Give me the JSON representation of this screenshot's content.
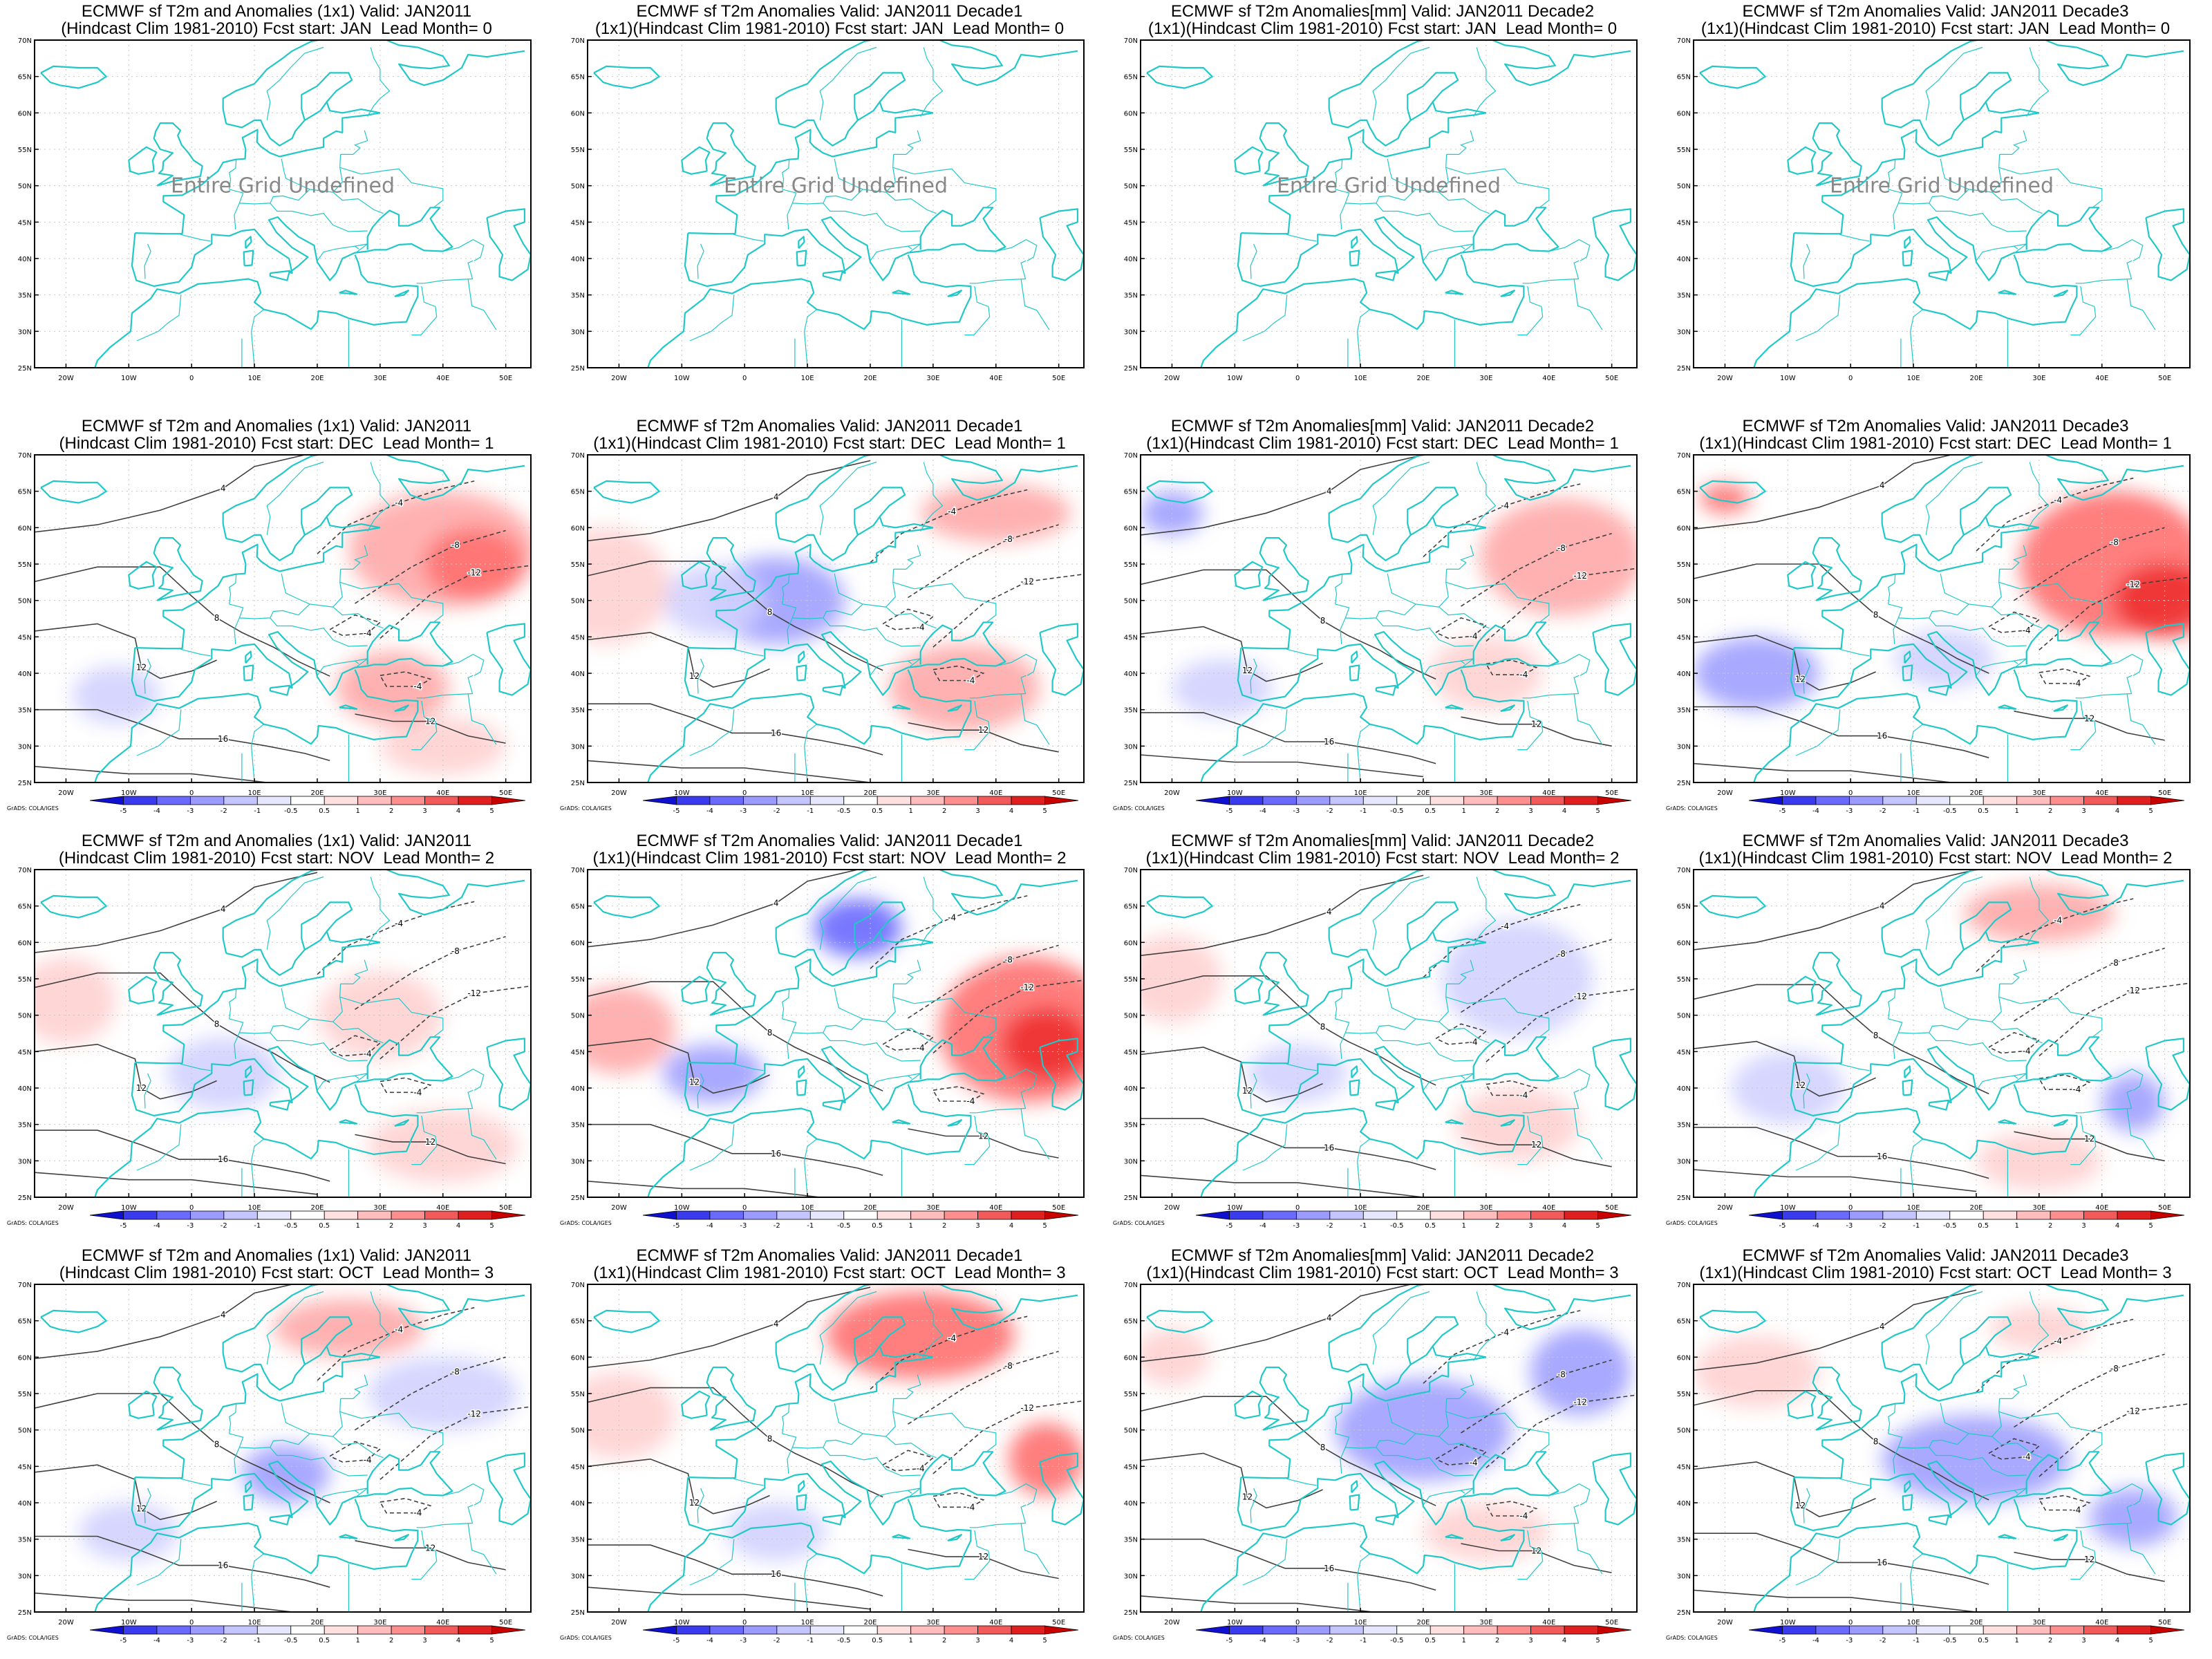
{
  "figure": {
    "common": {
      "lat_labels": [
        "70N",
        "65N",
        "60N",
        "55N",
        "50N",
        "45N",
        "40N",
        "35N",
        "30N",
        "25N"
      ],
      "lon_labels": [
        "20W",
        "10W",
        "0",
        "10E",
        "20E",
        "30E",
        "40E",
        "50E"
      ],
      "colorbar_levels": [
        "-5",
        "-4",
        "-3",
        "-2",
        "-1",
        "-0.5",
        "0.5",
        "1",
        "2",
        "3",
        "4",
        "5"
      ],
      "colorbar_credit": "GrADS: COLA/IGES",
      "undefined_message": "Entire Grid Undefined",
      "contour_labels": [
        "4",
        "-4",
        "8",
        "-8",
        "12",
        "-12",
        "16"
      ],
      "colors": {
        "coast": "#20c8c8",
        "cold_strong": "#2020e0",
        "cold_light": "#d8d8ff",
        "warm_light": "#ffd8d8",
        "warm_strong": "#e01818",
        "contour": "#404040"
      }
    },
    "panels": [
      {
        "title_line1": "ECMWF sf T2m and Anomalies (1x1) Valid: JAN2011",
        "title_line2": "(Hindcast Clim 1981-2010) Fcst start: JAN  Lead Month= 0",
        "state": "undefined"
      },
      {
        "title_line1": "ECMWF sf T2m Anomalies Valid: JAN2011 Decade1",
        "title_line2": "(1x1)(Hindcast Clim 1981-2010) Fcst start: JAN  Lead Month= 0",
        "state": "undefined"
      },
      {
        "title_line1": "ECMWF sf T2m Anomalies[mm] Valid: JAN2011 Decade2",
        "title_line2": "(1x1)(Hindcast Clim 1981-2010) Fcst start: JAN  Lead Month= 0",
        "state": "undefined"
      },
      {
        "title_line1": "ECMWF sf T2m Anomalies Valid: JAN2011 Decade3",
        "title_line2": "(1x1)(Hindcast Clim 1981-2010) Fcst start: JAN  Lead Month= 0",
        "state": "undefined"
      },
      {
        "title_line1": "ECMWF sf T2m and Anomalies (1x1) Valid: JAN2011",
        "title_line2": "(Hindcast Clim 1981-2010) Fcst start: DEC  Lead Month= 1",
        "state": "field",
        "anomalies": [
          {
            "lon": 40,
            "lat": 57,
            "rx": 15,
            "ry": 8,
            "v": 2
          },
          {
            "lon": 45,
            "lat": 55,
            "rx": 8,
            "ry": 5,
            "v": 3
          },
          {
            "lon": 32,
            "lat": 38,
            "rx": 9,
            "ry": 5,
            "v": 2
          },
          {
            "lon": -12,
            "lat": 37,
            "rx": 7,
            "ry": 4,
            "v": -1
          },
          {
            "lon": 40,
            "lat": 30,
            "rx": 10,
            "ry": 4,
            "v": 1
          }
        ]
      },
      {
        "title_line1": "ECMWF sf T2m Anomalies Valid: JAN2011 Decade1",
        "title_line2": "(1x1)(Hindcast Clim 1981-2010) Fcst start: DEC  Lead Month= 1",
        "state": "field",
        "anomalies": [
          {
            "lon": 5,
            "lat": 50,
            "rx": 11,
            "ry": 6,
            "v": -2
          },
          {
            "lon": -5,
            "lat": 50,
            "rx": 8,
            "ry": 5,
            "v": -1
          },
          {
            "lon": 40,
            "lat": 62,
            "rx": 12,
            "ry": 4,
            "v": 2
          },
          {
            "lon": 35,
            "lat": 38,
            "rx": 12,
            "ry": 6,
            "v": 2
          },
          {
            "lon": -22,
            "lat": 52,
            "rx": 10,
            "ry": 8,
            "v": 1
          }
        ]
      },
      {
        "title_line1": "ECMWF sf T2m Anomalies[mm] Valid: JAN2011 Decade2",
        "title_line2": "(1x1)(Hindcast Clim 1981-2010) Fcst start: DEC  Lead Month= 1",
        "state": "field",
        "anomalies": [
          {
            "lon": 42,
            "lat": 56,
            "rx": 13,
            "ry": 8,
            "v": 2
          },
          {
            "lon": 30,
            "lat": 40,
            "rx": 9,
            "ry": 5,
            "v": 1
          },
          {
            "lon": -12,
            "lat": 38,
            "rx": 8,
            "ry": 4,
            "v": -1
          },
          {
            "lon": -20,
            "lat": 62,
            "rx": 5,
            "ry": 3,
            "v": -2
          }
        ]
      },
      {
        "title_line1": "ECMWF sf T2m Anomalies Valid: JAN2011 Decade3",
        "title_line2": "(1x1)(Hindcast Clim 1981-2010) Fcst start: DEC  Lead Month= 1",
        "state": "field",
        "anomalies": [
          {
            "lon": 42,
            "lat": 55,
            "rx": 15,
            "ry": 10,
            "v": 3
          },
          {
            "lon": 50,
            "lat": 50,
            "rx": 8,
            "ry": 5,
            "v": 4
          },
          {
            "lon": -15,
            "lat": 40,
            "rx": 10,
            "ry": 5,
            "v": -2
          },
          {
            "lon": 15,
            "lat": 42,
            "rx": 8,
            "ry": 4,
            "v": -1
          },
          {
            "lon": -20,
            "lat": 64,
            "rx": 4,
            "ry": 2,
            "v": 3
          }
        ]
      },
      {
        "title_line1": "ECMWF sf T2m and Anomalies (1x1) Valid: JAN2011",
        "title_line2": "(Hindcast Clim 1981-2010) Fcst start: NOV  Lead Month= 2",
        "state": "field",
        "anomalies": [
          {
            "lon": 30,
            "lat": 50,
            "rx": 10,
            "ry": 6,
            "v": 1
          },
          {
            "lon": -20,
            "lat": 52,
            "rx": 8,
            "ry": 6,
            "v": 1
          },
          {
            "lon": 5,
            "lat": 42,
            "rx": 9,
            "ry": 5,
            "v": -1
          },
          {
            "lon": 40,
            "lat": 32,
            "rx": 12,
            "ry": 5,
            "v": 1
          }
        ]
      },
      {
        "title_line1": "ECMWF sf T2m Anomalies Valid: JAN2011 Decade1",
        "title_line2": "(1x1)(Hindcast Clim 1981-2010) Fcst start: NOV  Lead Month= 2",
        "state": "field",
        "anomalies": [
          {
            "lon": 45,
            "lat": 48,
            "rx": 14,
            "ry": 10,
            "v": 3
          },
          {
            "lon": 48,
            "lat": 46,
            "rx": 7,
            "ry": 5,
            "v": 4
          },
          {
            "lon": 18,
            "lat": 62,
            "rx": 7,
            "ry": 4,
            "v": -3
          },
          {
            "lon": -5,
            "lat": 42,
            "rx": 8,
            "ry": 4,
            "v": -2
          },
          {
            "lon": -20,
            "lat": 48,
            "rx": 9,
            "ry": 6,
            "v": 2
          }
        ]
      },
      {
        "title_line1": "ECMWF sf T2m Anomalies[mm] Valid: JAN2011 Decade2",
        "title_line2": "(1x1)(Hindcast Clim 1981-2010) Fcst start: NOV  Lead Month= 2",
        "state": "field",
        "anomalies": [
          {
            "lon": 35,
            "lat": 55,
            "rx": 12,
            "ry": 8,
            "v": -1
          },
          {
            "lon": -20,
            "lat": 55,
            "rx": 8,
            "ry": 6,
            "v": 1
          },
          {
            "lon": 35,
            "lat": 35,
            "rx": 10,
            "ry": 5,
            "v": 1
          },
          {
            "lon": 0,
            "lat": 42,
            "rx": 8,
            "ry": 4,
            "v": -1
          }
        ]
      },
      {
        "title_line1": "ECMWF sf T2m Anomalies Valid: JAN2011 Decade3",
        "title_line2": "(1x1)(Hindcast Clim 1981-2010) Fcst start: NOV  Lead Month= 2",
        "state": "field",
        "anomalies": [
          {
            "lon": 30,
            "lat": 64,
            "rx": 12,
            "ry": 4,
            "v": 2
          },
          {
            "lon": 45,
            "lat": 38,
            "rx": 5,
            "ry": 4,
            "v": -2
          },
          {
            "lon": -10,
            "lat": 40,
            "rx": 9,
            "ry": 5,
            "v": -1
          },
          {
            "lon": 30,
            "lat": 30,
            "rx": 10,
            "ry": 4,
            "v": 1
          }
        ]
      },
      {
        "title_line1": "ECMWF sf T2m and Anomalies (1x1) Valid: JAN2011",
        "title_line2": "(Hindcast Clim 1981-2010) Fcst start: OCT  Lead Month= 3",
        "state": "field",
        "anomalies": [
          {
            "lon": 25,
            "lat": 64,
            "rx": 12,
            "ry": 4,
            "v": 2
          },
          {
            "lon": 40,
            "lat": 55,
            "rx": 12,
            "ry": 5,
            "v": -1
          },
          {
            "lon": 15,
            "lat": 44,
            "rx": 7,
            "ry": 4,
            "v": -2
          },
          {
            "lon": -10,
            "lat": 36,
            "rx": 8,
            "ry": 4,
            "v": -1
          }
        ]
      },
      {
        "title_line1": "ECMWF sf T2m Anomalies Valid: JAN2011 Decade1",
        "title_line2": "(1x1)(Hindcast Clim 1981-2010) Fcst start: OCT  Lead Month= 3",
        "state": "field",
        "anomalies": [
          {
            "lon": 28,
            "lat": 63,
            "rx": 15,
            "ry": 6,
            "v": 3
          },
          {
            "lon": 48,
            "lat": 46,
            "rx": 6,
            "ry": 5,
            "v": 3
          },
          {
            "lon": -20,
            "lat": 52,
            "rx": 9,
            "ry": 6,
            "v": 1
          },
          {
            "lon": 5,
            "lat": 36,
            "rx": 8,
            "ry": 4,
            "v": -1
          }
        ]
      },
      {
        "title_line1": "ECMWF sf T2m Anomalies[mm] Valid: JAN2011 Decade2",
        "title_line2": "(1x1)(Hindcast Clim 1981-2010) Fcst start: OCT  Lead Month= 3",
        "state": "field",
        "anomalies": [
          {
            "lon": 20,
            "lat": 50,
            "rx": 14,
            "ry": 7,
            "v": -2
          },
          {
            "lon": 45,
            "lat": 58,
            "rx": 8,
            "ry": 6,
            "v": -2
          },
          {
            "lon": -20,
            "lat": 60,
            "rx": 6,
            "ry": 4,
            "v": 1
          },
          {
            "lon": 30,
            "lat": 36,
            "rx": 10,
            "ry": 4,
            "v": 1
          }
        ]
      },
      {
        "title_line1": "ECMWF sf T2m Anomalies Valid: JAN2011 Decade3",
        "title_line2": "(1x1)(Hindcast Clim 1981-2010) Fcst start: OCT  Lead Month= 3",
        "state": "field",
        "anomalies": [
          {
            "lon": 20,
            "lat": 46,
            "rx": 15,
            "ry": 6,
            "v": -2
          },
          {
            "lon": -15,
            "lat": 58,
            "rx": 10,
            "ry": 5,
            "v": 1
          },
          {
            "lon": 45,
            "lat": 38,
            "rx": 7,
            "ry": 4,
            "v": -2
          },
          {
            "lon": 30,
            "lat": 64,
            "rx": 8,
            "ry": 3,
            "v": 1
          }
        ]
      }
    ]
  }
}
